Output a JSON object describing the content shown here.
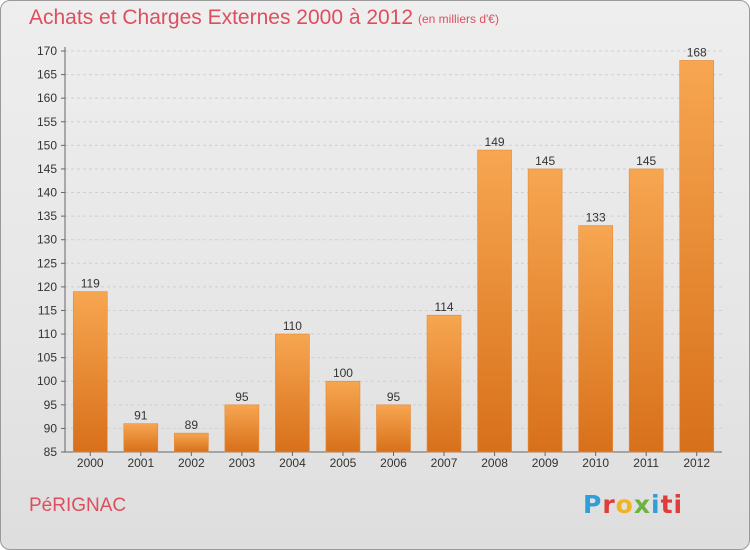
{
  "header": {
    "title": "Achats et Charges Externes 2000 à 2012",
    "subtitle": "(en milliers d'€)"
  },
  "footer": {
    "city": "PéRIGNAC",
    "logo": [
      "P",
      "r",
      "o",
      "x",
      "i",
      "ti"
    ]
  },
  "colors": {
    "bar_light": "#f7a651",
    "bar_dark": "#d8701a",
    "title": "#dd4f5e"
  },
  "chart_data": {
    "type": "bar",
    "title": "Achats et Charges Externes 2000 à 2012",
    "xlabel": "",
    "ylabel": "",
    "categories": [
      "2000",
      "2001",
      "2002",
      "2003",
      "2004",
      "2005",
      "2006",
      "2007",
      "2008",
      "2009",
      "2010",
      "2011",
      "2012"
    ],
    "values": [
      119,
      91,
      89,
      95,
      110,
      100,
      95,
      114,
      149,
      145,
      133,
      145,
      168
    ],
    "ylim": [
      85,
      170
    ],
    "yticks": [
      85,
      90,
      95,
      100,
      105,
      110,
      115,
      120,
      125,
      130,
      135,
      140,
      145,
      150,
      155,
      160,
      165,
      170
    ],
    "grid": true,
    "data_labels": true
  }
}
